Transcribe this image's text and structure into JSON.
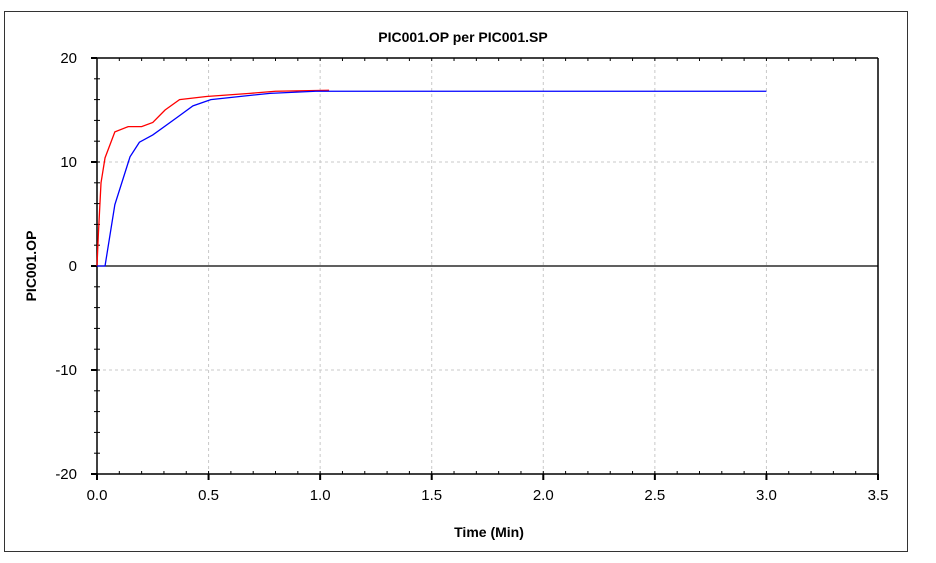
{
  "chart_data": {
    "type": "line",
    "title": "PIC001.OP per PIC001.SP",
    "xlabel": "Time (Min)",
    "ylabel": "PIC001.OP",
    "xlim": [
      0,
      3.5
    ],
    "ylim": [
      -20,
      20
    ],
    "xticks": [
      "0.0",
      "0.5",
      "1.0",
      "1.5",
      "2.0",
      "2.5",
      "3.0",
      "3.5"
    ],
    "yticks": [
      "20",
      "10",
      "0",
      "-10",
      "-20"
    ],
    "grid": true,
    "legend": "none",
    "series": [
      {
        "color": "#ff0000",
        "x": [
          0.0,
          0.006,
          0.018,
          0.036,
          0.08,
          0.14,
          0.2,
          0.25,
          0.305,
          0.37,
          0.49,
          0.685,
          0.8,
          1.04
        ],
        "y": [
          0.0,
          3.0,
          8.0,
          10.4,
          12.9,
          13.4,
          13.4,
          13.8,
          15.0,
          16.0,
          16.3,
          16.6,
          16.8,
          16.9
        ]
      },
      {
        "color": "#0000ff",
        "x": [
          0.0,
          0.036,
          0.08,
          0.148,
          0.19,
          0.25,
          0.36,
          0.43,
          0.51,
          0.64,
          0.775,
          0.98,
          3.0
        ],
        "y": [
          0.0,
          0.0,
          5.9,
          10.5,
          11.9,
          12.6,
          14.3,
          15.4,
          16.0,
          16.3,
          16.6,
          16.8,
          16.8
        ]
      }
    ]
  }
}
